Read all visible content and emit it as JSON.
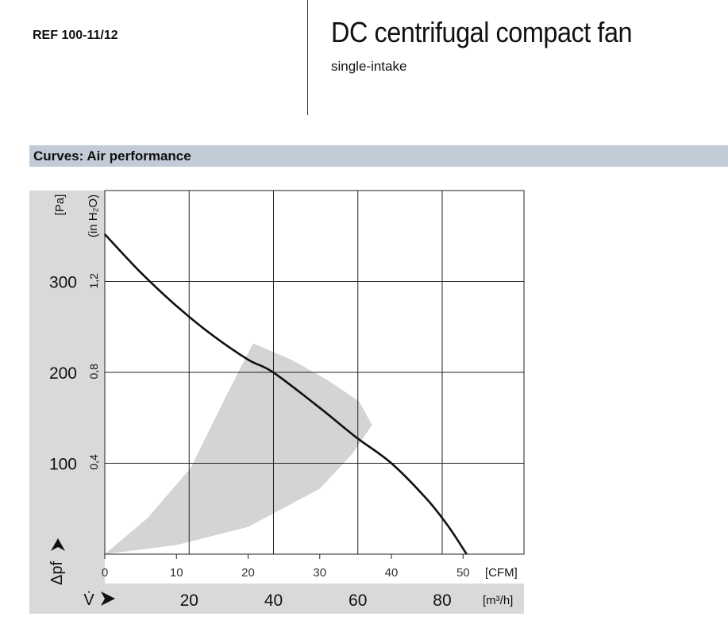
{
  "header": {
    "ref": "REF 100-11/12",
    "title": "DC centrifugal compact fan",
    "subtitle": "single-intake"
  },
  "section": {
    "title": "Curves: Air performance"
  },
  "colors": {
    "section_bar": "#c2ccd6",
    "axis_panel": "#d9d9d9",
    "shaded_region": "#d4d4d4",
    "curve": "#111111",
    "grid": "#222222"
  },
  "chart_data": {
    "type": "line",
    "y_unit_label": "[Pa]",
    "y2_unit_label": "(in H₂O)",
    "y_symbol": "Δpf",
    "x_symbol": "V̇",
    "x_unit_top": "[CFM]",
    "x_unit_bottom": "[m³/h]",
    "ylim": [
      0,
      400
    ],
    "y_ticks": [
      100,
      200,
      300
    ],
    "y_tick_labels": [
      "100",
      "200",
      "300"
    ],
    "y2_ticks_pa": [
      99.6,
      199.3,
      298.9
    ],
    "y2_tick_labels": [
      "0,4",
      "0,8",
      "1,2"
    ],
    "x_cfm_lim": [
      0,
      58.5
    ],
    "x_cfm_ticks": [
      0,
      10,
      20,
      30,
      40,
      50
    ],
    "x_cfm_tick_labels": [
      "0",
      "10",
      "20",
      "30",
      "40",
      "50"
    ],
    "x_grid_m3h": [
      20,
      40,
      60,
      80
    ],
    "x_m3h_tick_labels": [
      "20",
      "40",
      "60",
      "80"
    ],
    "grid": true,
    "series": [
      {
        "x_cfm": [
          0,
          5,
          10,
          15,
          20,
          23.5,
          30,
          35,
          40,
          45,
          48,
          50.5
        ],
        "y_pa": [
          352,
          310,
          273,
          241,
          214,
          200,
          161,
          129,
          100,
          60,
          30,
          0
        ]
      }
    ],
    "operating_region": {
      "x_cfm": [
        0,
        10,
        20,
        30,
        34.5,
        37.3,
        35.5,
        31,
        26,
        20.7,
        17,
        12,
        6,
        0
      ],
      "y_pa": [
        0,
        10,
        30,
        72,
        110,
        142,
        168,
        192,
        214,
        232,
        175,
        95,
        40,
        0
      ]
    }
  }
}
